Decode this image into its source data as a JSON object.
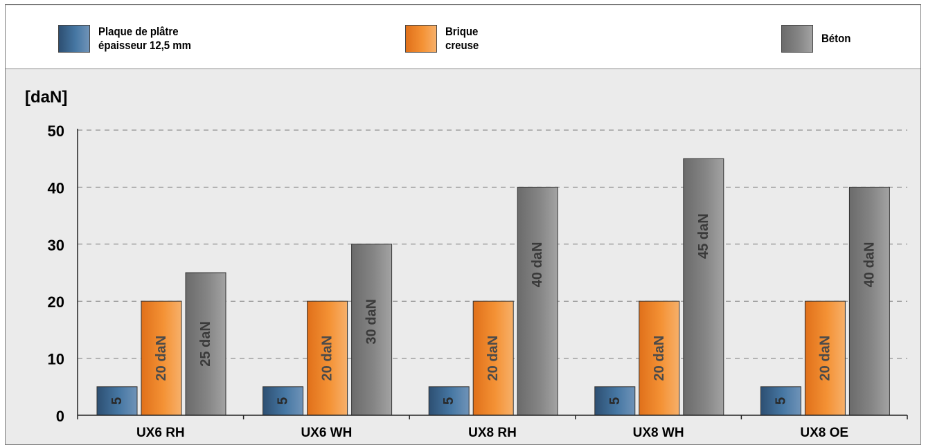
{
  "legend": {
    "items": [
      {
        "label": "Plaque de plâtre\népaisseur 12,5 mm",
        "color": "#3f6b94"
      },
      {
        "label": "Brique\ncreuse",
        "color": "#f08a2a"
      },
      {
        "label": "Béton",
        "color": "#7f7f7f"
      }
    ]
  },
  "chart_data": {
    "type": "bar",
    "ylabel": "[daN]",
    "ylim": [
      0,
      50
    ],
    "yticks": [
      0,
      10,
      20,
      30,
      40,
      50
    ],
    "grid": true,
    "legend_position": "top",
    "categories": [
      "UX6 RH",
      "UX6 WH",
      "UX8 RH",
      "UX8 WH",
      "UX8 OE"
    ],
    "series": [
      {
        "name": "Plaque de plâtre\népaisseur 12,5 mm",
        "color": "#3f6b94",
        "values": [
          5,
          5,
          5,
          5,
          5
        ],
        "labels": [
          "5",
          "5",
          "5",
          "5",
          "5"
        ]
      },
      {
        "name": "Brique\ncreuse",
        "color": "#f08a2a",
        "values": [
          20,
          20,
          20,
          20,
          20
        ],
        "labels": [
          "20 daN",
          "20 daN",
          "20 daN",
          "20 daN",
          "20 daN"
        ]
      },
      {
        "name": "Béton",
        "color": "#7f7f7f",
        "values": [
          25,
          30,
          40,
          45,
          40
        ],
        "labels": [
          "25 daN",
          "30 daN",
          "40 daN",
          "45 daN",
          "40 daN"
        ]
      }
    ]
  }
}
